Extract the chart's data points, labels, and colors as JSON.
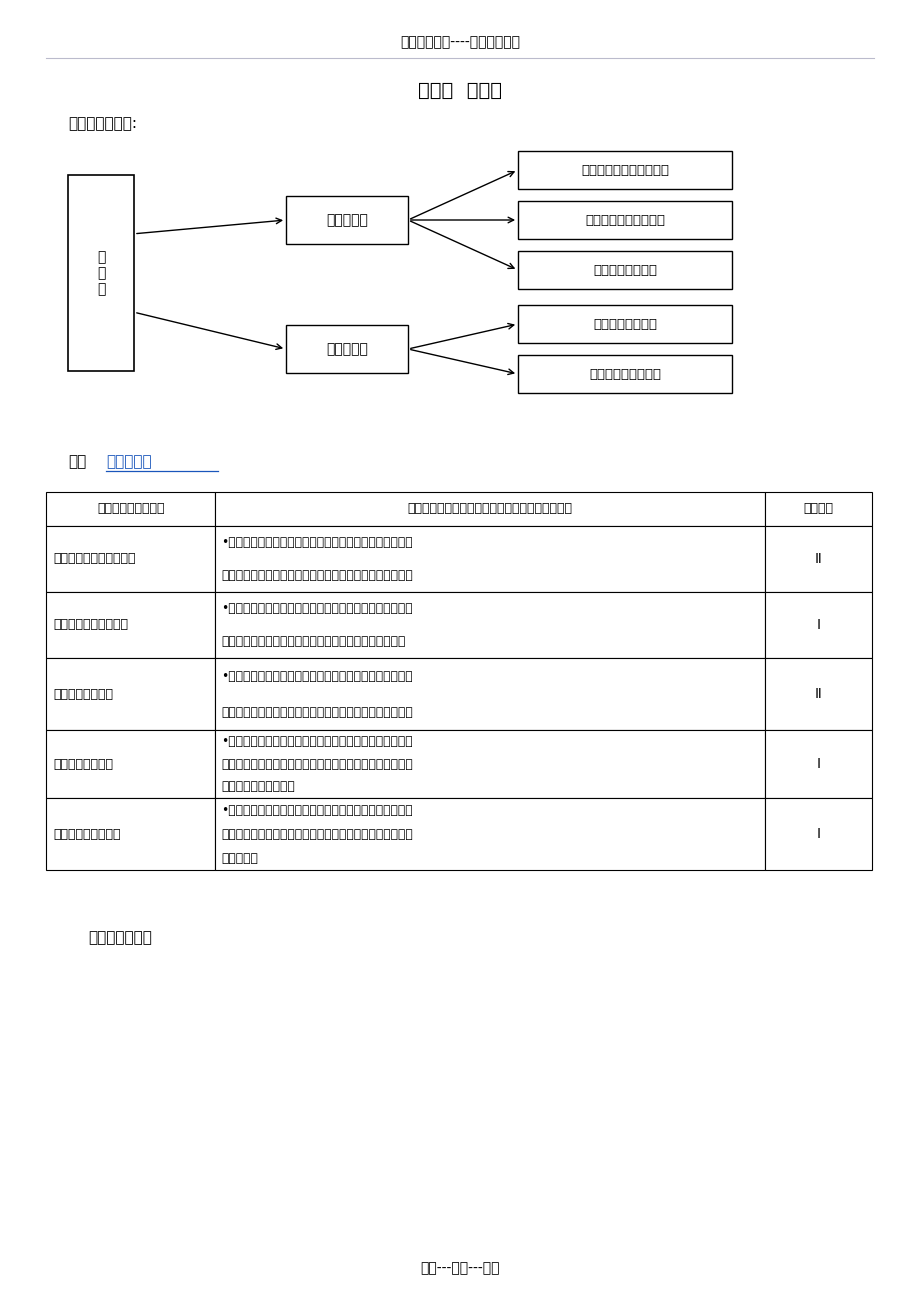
{
  "page_bg": "#ffffff",
  "header_text": "精选优质文档----倾情为你奉上",
  "footer_text": "专心---专注---专业",
  "title": "第一节  传感器",
  "section1_title": "一、内容结构图:",
  "section2_static": "二、",
  "section2_link": "知识点列表",
  "section3_title": "三、重难点分析",
  "diag_root_text": "传\n感\n器",
  "diag_mid1_text": "认识传感器",
  "diag_mid2_text": "传感器应用",
  "diag_right_labels": [
    "常见传感器的种类、型号",
    "常见传感器的电路图形",
    "常见传感器的检测",
    "常见传感器的作用",
    "常见传感器典型应用"
  ],
  "table_header": [
    "学习结果（知识点）",
    "指标（当学生获得这种学习结果时，他们能够：）",
    "表现水平"
  ],
  "table_rows": [
    [
      "常见传感器的种类、型号",
      "•能从外形和标识上识别光敏传感器、热敏传感器、湿敏传感器、声敏传感器、力敏传感器、气敏传感器等常见传感器",
      "Ⅱ"
    ],
    [
      "常见传感器的电路图形",
      "•熟悉光敏传感器、热敏传感器、湿敏传感器、声敏传感器、力敏传感器、气敏传感器等常见传感器的电路图形符号",
      "Ⅰ"
    ],
    [
      "常见传感器的检测",
      "•能用多用电表检测光敏传感器、热敏传感器、湿敏传感器、声敏传感器、力敏传感器等常见传感器的特性并判断好坏",
      "Ⅱ"
    ],
    [
      "常见传感器的作用",
      "•知道光敏传感器、热敏传感器、湿敏传感器、声敏传感器、力敏传感器、气敏传感器等常见传感器的物理信息采集和电信号转换原理和作用",
      "Ⅰ"
    ],
    [
      "常见传感器典型应用",
      "•举例说明光敏传感器、热敏传感器、湿敏传感器、声敏传感器、力敏传感器、气敏传感器等常见传感器在自动控制系统中的应用",
      "Ⅰ"
    ]
  ],
  "link_color": "#1a56bb",
  "header_line_color": "#bbbbcc"
}
